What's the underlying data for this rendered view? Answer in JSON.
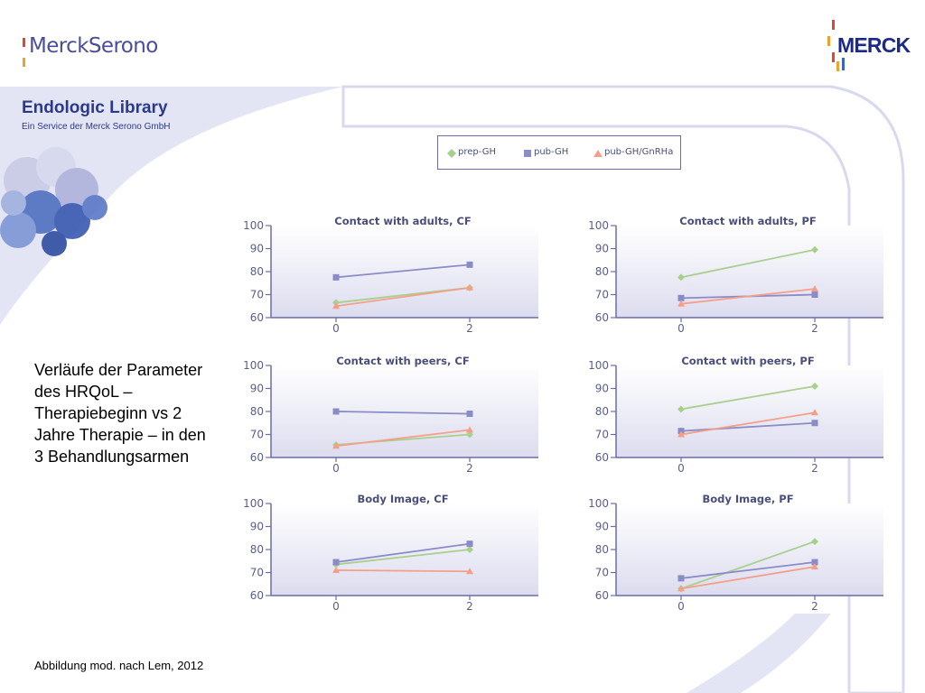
{
  "brand": {
    "left_logo": "MerckSerono",
    "right_logo": "MERCK",
    "library_title": "Endologic Library",
    "library_subtitle": "Ein Service der Merck Serono GmbH"
  },
  "caption": {
    "lines": [
      "Verläufe der Parameter",
      "des HRQoL –",
      "Therapiebeginn vs 2",
      "Jahre Therapie – in den",
      "3 Behandlungsarmen"
    ]
  },
  "source": "Abbildung mod. nach Lem, 2012",
  "legend": [
    {
      "name": "prep-GH",
      "marker": "diamond",
      "color": "#a8d08d"
    },
    {
      "name": "pub-GH",
      "marker": "square",
      "color": "#8a8cc8"
    },
    {
      "name": "pub-GH/GnRHa",
      "marker": "triangle",
      "color": "#f4a088"
    }
  ],
  "colors": {
    "prep-GH": "#a8d08d",
    "pub-GH": "#8a8cc8",
    "pub-GH/GnRHa": "#f4a088",
    "axis": "#6a6ca8",
    "tick_text": "#5a5e8a",
    "brand_blue": "#2a3a8a"
  },
  "chart_data": [
    {
      "type": "line",
      "title": "Contact with adults, CF",
      "x": [
        0,
        2
      ],
      "ylim": [
        60,
        100
      ],
      "yticks": [
        60,
        70,
        80,
        90,
        100
      ],
      "xticks": [
        0,
        2
      ],
      "series": [
        {
          "name": "prep-GH",
          "values": [
            66.5,
            73
          ]
        },
        {
          "name": "pub-GH",
          "values": [
            77.5,
            83
          ]
        },
        {
          "name": "pub-GH/GnRHa",
          "values": [
            65,
            73
          ]
        }
      ]
    },
    {
      "type": "line",
      "title": "Contact with adults, PF",
      "x": [
        0,
        2
      ],
      "ylim": [
        60,
        100
      ],
      "yticks": [
        60,
        70,
        80,
        90,
        100
      ],
      "xticks": [
        0,
        2
      ],
      "series": [
        {
          "name": "prep-GH",
          "values": [
            77.5,
            89.5
          ]
        },
        {
          "name": "pub-GH",
          "values": [
            68.5,
            70
          ]
        },
        {
          "name": "pub-GH/GnRHa",
          "values": [
            66,
            72.5
          ]
        }
      ]
    },
    {
      "type": "line",
      "title": "Contact with peers, CF",
      "x": [
        0,
        2
      ],
      "ylim": [
        60,
        100
      ],
      "yticks": [
        60,
        70,
        80,
        90,
        100
      ],
      "xticks": [
        0,
        2
      ],
      "series": [
        {
          "name": "prep-GH",
          "values": [
            65.5,
            70
          ]
        },
        {
          "name": "pub-GH",
          "values": [
            80,
            79
          ]
        },
        {
          "name": "pub-GH/GnRHa",
          "values": [
            65,
            72
          ]
        }
      ]
    },
    {
      "type": "line",
      "title": "Contact with peers, PF",
      "x": [
        0,
        2
      ],
      "ylim": [
        60,
        100
      ],
      "yticks": [
        60,
        70,
        80,
        90,
        100
      ],
      "xticks": [
        0,
        2
      ],
      "series": [
        {
          "name": "prep-GH",
          "values": [
            81,
            91
          ]
        },
        {
          "name": "pub-GH",
          "values": [
            71.5,
            75
          ]
        },
        {
          "name": "pub-GH/GnRHa",
          "values": [
            70,
            79.5
          ]
        }
      ]
    },
    {
      "type": "line",
      "title": "Body Image, CF",
      "x": [
        0,
        2
      ],
      "ylim": [
        60,
        100
      ],
      "yticks": [
        60,
        70,
        80,
        90,
        100
      ],
      "xticks": [
        0,
        2
      ],
      "series": [
        {
          "name": "prep-GH",
          "values": [
            73.5,
            80
          ]
        },
        {
          "name": "pub-GH",
          "values": [
            74.5,
            82.5
          ]
        },
        {
          "name": "pub-GH/GnRHa",
          "values": [
            71,
            70.5
          ]
        }
      ]
    },
    {
      "type": "line",
      "title": "Body Image, PF",
      "x": [
        0,
        2
      ],
      "ylim": [
        60,
        100
      ],
      "yticks": [
        60,
        70,
        80,
        90,
        100
      ],
      "xticks": [
        0,
        2
      ],
      "series": [
        {
          "name": "prep-GH",
          "values": [
            63,
            83.5
          ]
        },
        {
          "name": "pub-GH",
          "values": [
            67.5,
            74.5
          ]
        },
        {
          "name": "pub-GH/GnRHa",
          "values": [
            63,
            72.5
          ]
        }
      ]
    }
  ]
}
